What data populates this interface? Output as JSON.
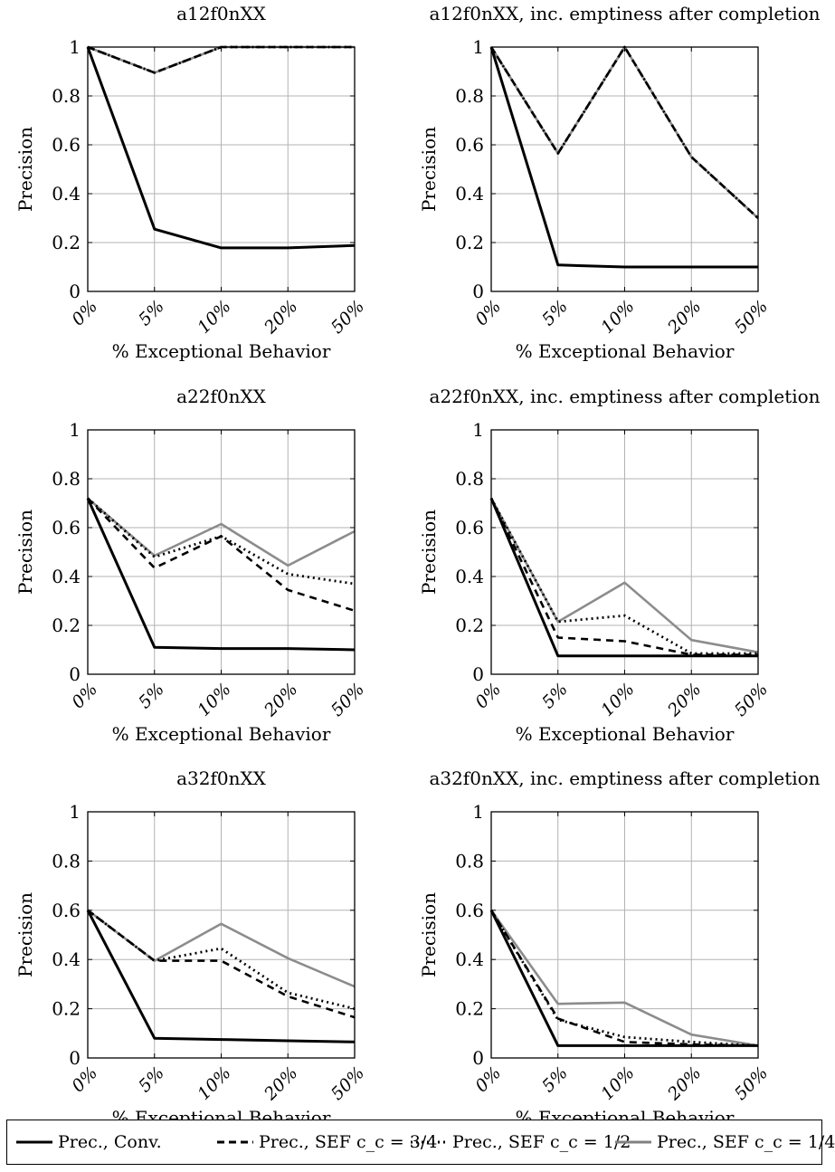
{
  "legend": [
    {
      "key": "conv",
      "label": "Prec., Conv.",
      "color": "#000000",
      "dash": "solid"
    },
    {
      "key": "sef34",
      "label": "Prec., SEF c_c = 3/4",
      "color": "#000000",
      "dash": "dashed"
    },
    {
      "key": "sef12",
      "label": "Prec., SEF c_c = 1/2",
      "color": "#000000",
      "dash": "dotted"
    },
    {
      "key": "sef14",
      "label": "Prec., SEF c_c = 1/4",
      "color": "#808080",
      "dash": "solid"
    }
  ],
  "chart_data": [
    {
      "type": "line",
      "title": "a12f0nXX",
      "xlabel": "% Exceptional Behavior",
      "ylabel": "Precision",
      "categories": [
        "0%",
        "5%",
        "10%",
        "20%",
        "50%"
      ],
      "ylim": [
        0,
        1
      ],
      "yticks": [
        "0",
        "0.2",
        "0.4",
        "0.6",
        "0.8",
        "1"
      ],
      "grid": true,
      "series": [
        {
          "name": "Prec., Conv.",
          "values": [
            1.0,
            0.255,
            0.178,
            0.178,
            0.188
          ]
        },
        {
          "name": "Prec., SEF c_c = 3/4",
          "values": [
            1.0,
            0.895,
            1.0,
            1.0,
            1.0
          ]
        },
        {
          "name": "Prec., SEF c_c = 1/2",
          "values": [
            1.0,
            0.895,
            1.0,
            1.0,
            1.0
          ]
        },
        {
          "name": "Prec., SEF c_c = 1/4",
          "values": [
            1.0,
            0.895,
            1.0,
            1.0,
            1.0
          ]
        }
      ]
    },
    {
      "type": "line",
      "title": "a12f0nXX, inc. emptiness after completion",
      "xlabel": "% Exceptional Behavior",
      "ylabel": "Precision",
      "categories": [
        "0%",
        "5%",
        "10%",
        "20%",
        "50%"
      ],
      "ylim": [
        0,
        1
      ],
      "yticks": [
        "0",
        "0.2",
        "0.4",
        "0.6",
        "0.8",
        "1"
      ],
      "grid": true,
      "series": [
        {
          "name": "Prec., Conv.",
          "values": [
            1.0,
            0.108,
            0.1,
            0.1,
            0.1
          ]
        },
        {
          "name": "Prec., SEF c_c = 3/4",
          "values": [
            1.0,
            0.565,
            1.0,
            0.55,
            0.3
          ]
        },
        {
          "name": "Prec., SEF c_c = 1/2",
          "values": [
            1.0,
            0.565,
            1.0,
            0.55,
            0.3
          ]
        },
        {
          "name": "Prec., SEF c_c = 1/4",
          "values": [
            1.0,
            0.565,
            1.0,
            0.55,
            0.3
          ]
        }
      ]
    },
    {
      "type": "line",
      "title": "a22f0nXX",
      "xlabel": "% Exceptional Behavior",
      "ylabel": "Precision",
      "categories": [
        "0%",
        "5%",
        "10%",
        "20%",
        "50%"
      ],
      "ylim": [
        0,
        1
      ],
      "yticks": [
        "0",
        "0.2",
        "0.4",
        "0.6",
        "0.8",
        "1"
      ],
      "grid": true,
      "series": [
        {
          "name": "Prec., Conv.",
          "values": [
            0.72,
            0.11,
            0.105,
            0.105,
            0.1
          ]
        },
        {
          "name": "Prec., SEF c_c = 3/4",
          "values": [
            0.72,
            0.435,
            0.565,
            0.345,
            0.26
          ]
        },
        {
          "name": "Prec., SEF c_c = 1/2",
          "values": [
            0.72,
            0.48,
            0.565,
            0.41,
            0.37
          ]
        },
        {
          "name": "Prec., SEF c_c = 1/4",
          "values": [
            0.72,
            0.485,
            0.615,
            0.445,
            0.585
          ]
        }
      ]
    },
    {
      "type": "line",
      "title": "a22f0nXX, inc. emptiness after completion",
      "xlabel": "% Exceptional Behavior",
      "ylabel": "Precision",
      "categories": [
        "0%",
        "5%",
        "10%",
        "20%",
        "50%"
      ],
      "ylim": [
        0,
        1
      ],
      "yticks": [
        "0",
        "0.2",
        "0.4",
        "0.6",
        "0.8",
        "1"
      ],
      "grid": true,
      "series": [
        {
          "name": "Prec., Conv.",
          "values": [
            0.72,
            0.075,
            0.075,
            0.075,
            0.075
          ]
        },
        {
          "name": "Prec., SEF c_c = 3/4",
          "values": [
            0.72,
            0.15,
            0.135,
            0.08,
            0.08
          ]
        },
        {
          "name": "Prec., SEF c_c = 1/2",
          "values": [
            0.72,
            0.215,
            0.24,
            0.085,
            0.085
          ]
        },
        {
          "name": "Prec., SEF c_c = 1/4",
          "values": [
            0.72,
            0.215,
            0.375,
            0.14,
            0.09
          ]
        }
      ]
    },
    {
      "type": "line",
      "title": "a32f0nXX",
      "xlabel": "% Exceptional Behavior",
      "ylabel": "Precision",
      "categories": [
        "0%",
        "5%",
        "10%",
        "20%",
        "50%"
      ],
      "ylim": [
        0,
        1
      ],
      "yticks": [
        "0",
        "0.2",
        "0.4",
        "0.6",
        "0.8",
        "1"
      ],
      "grid": true,
      "series": [
        {
          "name": "Prec., Conv.",
          "values": [
            0.6,
            0.08,
            0.075,
            0.07,
            0.065
          ]
        },
        {
          "name": "Prec., SEF c_c = 3/4",
          "values": [
            0.6,
            0.395,
            0.395,
            0.25,
            0.165
          ]
        },
        {
          "name": "Prec., SEF c_c = 1/2",
          "values": [
            0.6,
            0.395,
            0.445,
            0.265,
            0.2
          ]
        },
        {
          "name": "Prec., SEF c_c = 1/4",
          "values": [
            0.6,
            0.395,
            0.545,
            0.405,
            0.29
          ]
        }
      ]
    },
    {
      "type": "line",
      "title": "a32f0nXX, inc. emptiness after completion",
      "xlabel": "% Exceptional Behavior",
      "ylabel": "Precision",
      "categories": [
        "0%",
        "5%",
        "10%",
        "20%",
        "50%"
      ],
      "ylim": [
        0,
        1
      ],
      "yticks": [
        "0",
        "0.2",
        "0.4",
        "0.6",
        "0.8",
        "1"
      ],
      "grid": true,
      "series": [
        {
          "name": "Prec., Conv.",
          "values": [
            0.6,
            0.05,
            0.05,
            0.05,
            0.05
          ]
        },
        {
          "name": "Prec., SEF c_c = 3/4",
          "values": [
            0.6,
            0.16,
            0.065,
            0.055,
            0.05
          ]
        },
        {
          "name": "Prec., SEF c_c = 1/2",
          "values": [
            0.6,
            0.155,
            0.085,
            0.065,
            0.05
          ]
        },
        {
          "name": "Prec., SEF c_c = 1/4",
          "values": [
            0.6,
            0.22,
            0.225,
            0.095,
            0.05
          ]
        }
      ]
    }
  ]
}
